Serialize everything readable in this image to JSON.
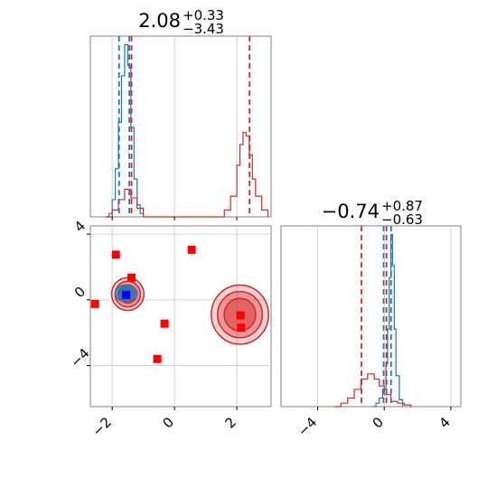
{
  "chart_data": [
    {
      "type": "step",
      "panel": "x-marginal",
      "title": {
        "main": "2.08",
        "upper": "+0.33",
        "lower": "−3.43"
      },
      "xlim": [
        -2.7,
        3.1
      ],
      "grid": true,
      "series": [
        {
          "color": "#1f77b4",
          "x": [
            -2.2,
            -2.1,
            -2.0,
            -1.9,
            -1.8,
            -1.7,
            -1.6,
            -1.5,
            -1.4,
            -1.3,
            -1.2,
            -1.1,
            -1.0
          ],
          "density": [
            0.0,
            0.02,
            0.1,
            0.28,
            0.55,
            0.82,
            1.0,
            0.88,
            0.52,
            0.22,
            0.07,
            0.02,
            0.0
          ]
        },
        {
          "color": "#d62728",
          "x": [
            -2.2,
            -2.0,
            -1.8,
            -1.6,
            -1.4,
            -1.2,
            -1.0,
            1.4,
            1.6,
            1.8,
            2.0,
            2.1,
            2.2,
            2.3,
            2.4,
            2.5,
            2.6,
            2.8,
            3.0
          ],
          "density": [
            0.0,
            0.04,
            0.1,
            0.16,
            0.11,
            0.05,
            0.0,
            0.0,
            0.04,
            0.12,
            0.3,
            0.42,
            0.49,
            0.47,
            0.36,
            0.22,
            0.12,
            0.04,
            0.0
          ]
        }
      ],
      "vlines": [
        {
          "x": -1.78,
          "color": "#1f77b4"
        },
        {
          "x": -1.45,
          "color": "#1f77b4"
        },
        {
          "x": -1.38,
          "color": "#d62728"
        },
        {
          "x": 2.41,
          "color": "#d62728"
        }
      ]
    },
    {
      "type": "scatter",
      "panel": "joint",
      "xlim": [
        -2.7,
        3.1
      ],
      "ylim": [
        -6.5,
        4.5
      ],
      "xticks": [
        -2,
        0,
        2
      ],
      "xtick_labels": [
        "−2",
        "0",
        "2"
      ],
      "yticks": [
        -4,
        0,
        4
      ],
      "ytick_labels": [
        "−4",
        "0",
        "4"
      ],
      "grid": true,
      "contours": [
        {
          "color": "#d62728",
          "cx": -1.5,
          "cy": 0.35,
          "rx": 0.52,
          "ry": 1.0
        },
        {
          "color": "#d62728",
          "cx": 2.1,
          "cy": -0.9,
          "rx": 0.92,
          "ry": 1.8
        },
        {
          "color": "#1f77b4",
          "cx": -1.55,
          "cy": 0.4,
          "rx": 0.35,
          "ry": 0.5
        }
      ],
      "markers": [
        {
          "x": -2.55,
          "y": -0.25,
          "color": "#ff0000"
        },
        {
          "x": -1.88,
          "y": 2.75,
          "color": "#ff0000"
        },
        {
          "x": -1.38,
          "y": 1.35,
          "color": "#ff0000"
        },
        {
          "x": -0.32,
          "y": -1.45,
          "color": "#ff0000"
        },
        {
          "x": -0.55,
          "y": -3.6,
          "color": "#ff0000"
        },
        {
          "x": 0.55,
          "y": 3.05,
          "color": "#ff0000"
        },
        {
          "x": 2.12,
          "y": -0.95,
          "color": "#ff0000"
        },
        {
          "x": 2.14,
          "y": -1.7,
          "color": "#ff0000"
        },
        {
          "x": -1.55,
          "y": 0.3,
          "color": "#0000ff"
        }
      ]
    },
    {
      "type": "step",
      "panel": "y-marginal",
      "title": {
        "main": "−0.74",
        "upper": "+0.87",
        "lower": "−0.63"
      },
      "xlim": [
        -6.2,
        4.6
      ],
      "xticks": [
        -4,
        0,
        4
      ],
      "xtick_labels": [
        "−4",
        "0",
        "4"
      ],
      "grid": true,
      "series": [
        {
          "color": "#1f77b4",
          "x": [
            -0.7,
            -0.5,
            -0.3,
            -0.1,
            0.1,
            0.2,
            0.3,
            0.4,
            0.5,
            0.6,
            0.7,
            0.9,
            1.1
          ],
          "density": [
            0.0,
            0.02,
            0.05,
            0.1,
            0.25,
            0.45,
            0.75,
            1.0,
            0.82,
            0.45,
            0.18,
            0.04,
            0.0
          ]
        },
        {
          "color": "#d62728",
          "x": [
            -3.0,
            -2.6,
            -2.2,
            -1.8,
            -1.4,
            -1.0,
            -0.6,
            -0.3,
            0.0,
            0.4,
            0.8,
            1.2,
            1.6
          ],
          "density": [
            0.0,
            0.02,
            0.05,
            0.1,
            0.16,
            0.19,
            0.16,
            0.12,
            0.07,
            0.03,
            0.02,
            0.01,
            0.0
          ]
        }
      ],
      "vlines": [
        {
          "x": -1.37,
          "color": "#d62728"
        },
        {
          "x": -0.04,
          "color": "#1f77b4"
        },
        {
          "x": 0.13,
          "color": "#d62728"
        },
        {
          "x": 0.41,
          "color": "#1f77b4"
        }
      ]
    }
  ]
}
